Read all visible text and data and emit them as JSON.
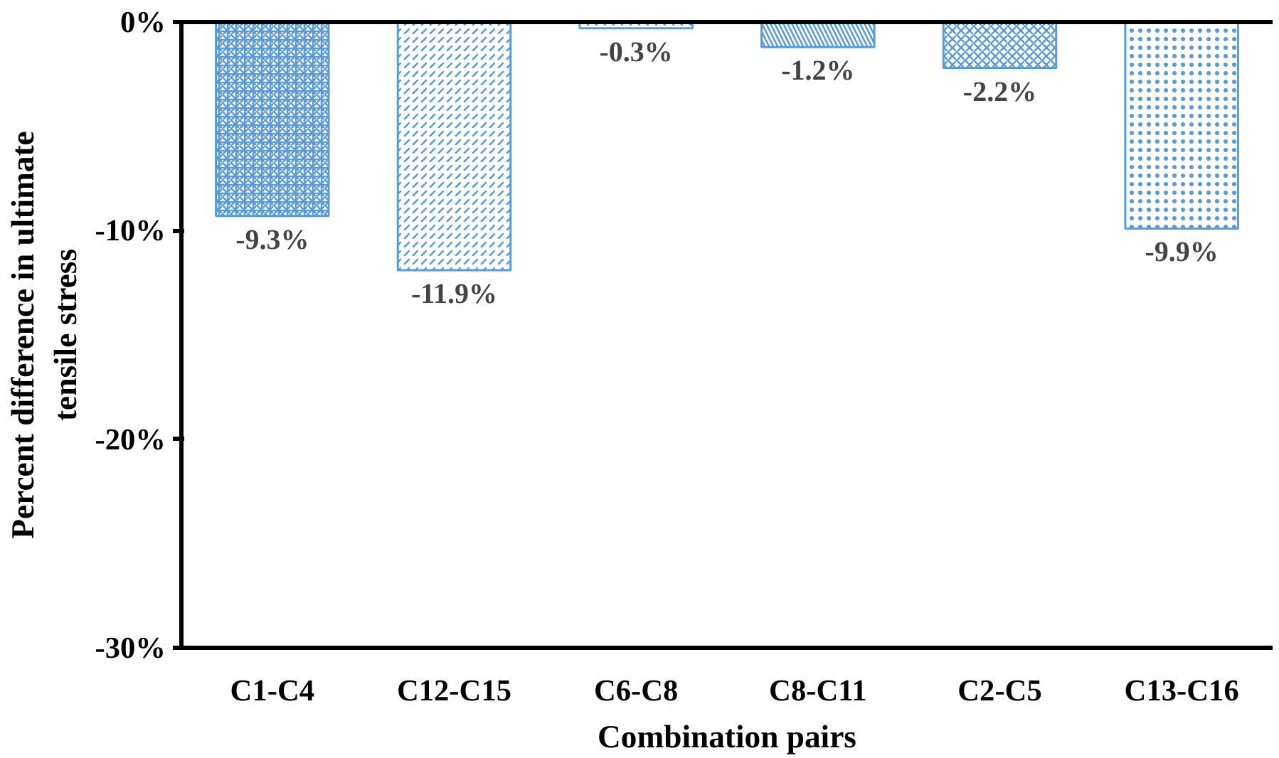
{
  "chart_data": {
    "type": "bar",
    "xlabel": "Combination pairs",
    "ylabel": "Percent difference in ultimate\ntensile stress",
    "categories": [
      "C1-C4",
      "C12-C15",
      "C6-C8",
      "C8-C11",
      "C2-C5",
      "C13-C16"
    ],
    "values": [
      -9.3,
      -11.9,
      -0.3,
      -1.2,
      -2.2,
      -9.9
    ],
    "value_labels": [
      "-9.3%",
      "-11.9%",
      "-0.3%",
      "-1.2%",
      "-2.2%",
      "-9.9%"
    ],
    "colors": [
      "#5b9bd5",
      "#5b9bd5",
      "#5b9bd5",
      "#5b9bd5",
      "#5b9bd5",
      "#5b9bd5"
    ],
    "ylim": [
      -30,
      0
    ],
    "yticks": [
      {
        "value": 0,
        "label": "0%"
      },
      {
        "value": -10,
        "label": "-10%"
      },
      {
        "value": -20,
        "label": "-20%"
      },
      {
        "value": -30,
        "label": "-30%"
      }
    ],
    "grid": false
  }
}
